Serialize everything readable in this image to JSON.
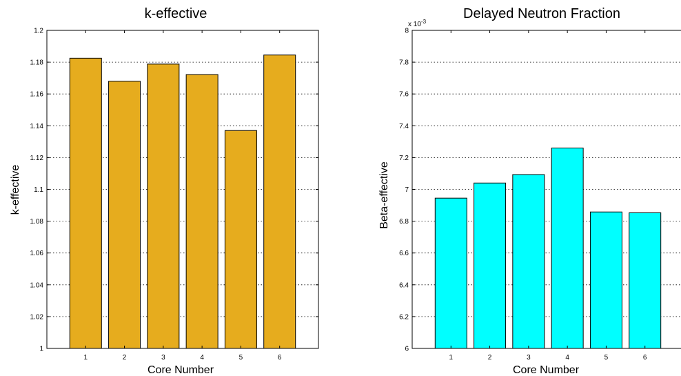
{
  "chart_data": [
    {
      "type": "bar",
      "title": "k-effective",
      "xlabel": "Core Number",
      "ylabel": "k-effective",
      "categories": [
        "1",
        "2",
        "3",
        "4",
        "5",
        "6"
      ],
      "values": [
        1.1825,
        1.168,
        1.1788,
        1.1722,
        1.137,
        1.1845
      ],
      "ylim": [
        1,
        1.2
      ],
      "yticks": [
        1,
        1.02,
        1.04,
        1.06,
        1.08,
        1.1,
        1.12,
        1.14,
        1.16,
        1.18,
        1.2
      ],
      "ytick_labels": [
        "1",
        "1.02",
        "1.04",
        "1.06",
        "1.08",
        "1.1",
        "1.12",
        "1.14",
        "1.16",
        "1.18",
        "1.2"
      ],
      "grid": "y-dotted",
      "bar_color": "#E6AC1E"
    },
    {
      "type": "bar",
      "title": "Delayed Neutron Fraction",
      "xlabel": "Core Number",
      "ylabel": "Beta-effective",
      "axis_multiplier": "x 10",
      "axis_multiplier_exponent": "-3",
      "categories": [
        "1",
        "2",
        "3",
        "4",
        "5",
        "6"
      ],
      "values": [
        6.945,
        7.04,
        7.093,
        7.26,
        6.858,
        6.853
      ],
      "ylim": [
        6,
        8
      ],
      "yticks": [
        6,
        6.2,
        6.4,
        6.6,
        6.8,
        7,
        7.2,
        7.4,
        7.6,
        7.8,
        8
      ],
      "ytick_labels": [
        "6",
        "6.2",
        "6.4",
        "6.6",
        "6.8",
        "7",
        "7.2",
        "7.4",
        "7.6",
        "7.8",
        "8"
      ],
      "grid": "y-dotted",
      "bar_color": "#00FFFF"
    }
  ]
}
